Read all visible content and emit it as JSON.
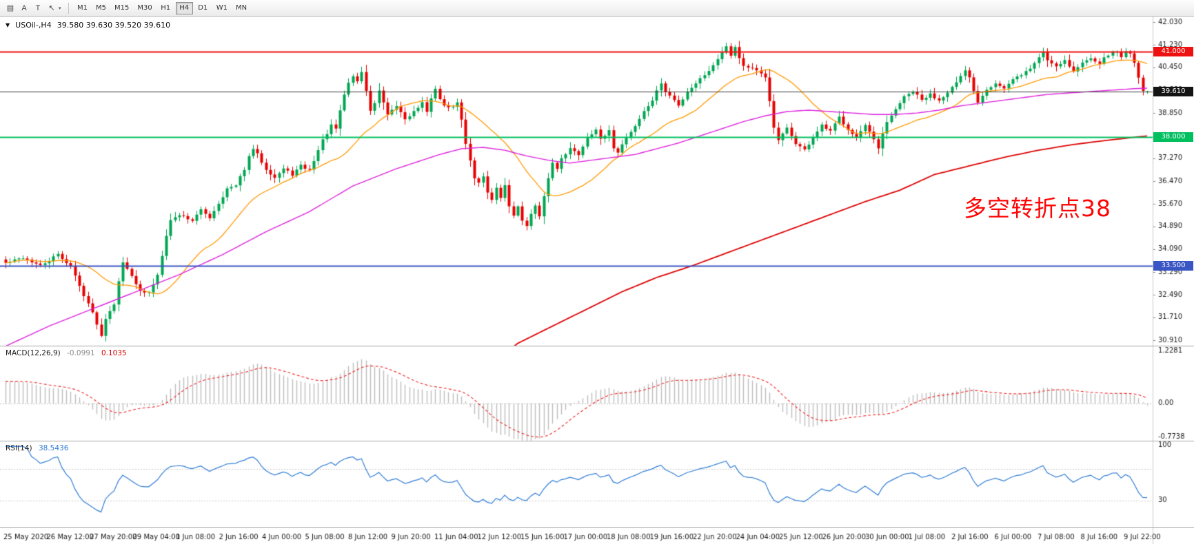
{
  "toolbar": {
    "icons": [
      {
        "name": "charts-grid-icon",
        "glyph": "▤"
      },
      {
        "name": "text-label-icon",
        "glyph": "A"
      },
      {
        "name": "template-icon",
        "glyph": "T"
      },
      {
        "name": "cursor-tool-icon",
        "glyph": "↖"
      },
      {
        "name": "dropdown-caret-icon",
        "glyph": "▾"
      }
    ],
    "timeframes": [
      "M1",
      "M5",
      "M15",
      "M30",
      "H1",
      "H4",
      "D1",
      "W1",
      "MN"
    ],
    "selected_timeframe": "H4"
  },
  "chart": {
    "symbol_title": "USOil-,H4",
    "ohlc": "39.580 39.630 39.520 39.610",
    "dropdown_glyph": "▼",
    "annotation": {
      "text": "多空转折点38",
      "color": "#fe0505"
    },
    "price_scale": {
      "max": 42.03,
      "min": 30.91,
      "ticks": [
        "42.030",
        "41.230",
        "40.450",
        "39.660",
        "38.850",
        "38.060",
        "37.270",
        "36.470",
        "35.670",
        "34.890",
        "34.090",
        "33.290",
        "32.490",
        "31.710",
        "30.910"
      ]
    },
    "hlines": [
      {
        "price": 41.0,
        "label": "41.000",
        "color": "#ee1111"
      },
      {
        "price": 38.0,
        "label": "38.000",
        "color": "#00bf5f"
      },
      {
        "price": 33.5,
        "label": "33.500",
        "color": "#3a55c4"
      }
    ],
    "current_price": {
      "value": 39.61,
      "label": "39.610",
      "color": "#141414"
    },
    "candles": {
      "count": 264,
      "up_color": "#00a651",
      "down_color": "#e80000",
      "close_keyframes": [
        [
          0,
          33.6
        ],
        [
          4,
          33.8
        ],
        [
          8,
          33.5
        ],
        [
          12,
          33.9
        ],
        [
          15,
          33.5
        ],
        [
          17,
          32.8
        ],
        [
          19,
          32.2
        ],
        [
          21,
          31.5
        ],
        [
          22,
          31.05
        ],
        [
          23,
          31.7
        ],
        [
          25,
          32.2
        ],
        [
          26,
          33.0
        ],
        [
          27,
          33.6
        ],
        [
          29,
          33.2
        ],
        [
          31,
          32.6
        ],
        [
          33,
          32.55
        ],
        [
          35,
          33.2
        ],
        [
          36,
          33.9
        ],
        [
          37,
          34.6
        ],
        [
          38,
          35.1
        ],
        [
          40,
          35.3
        ],
        [
          43,
          35.1
        ],
        [
          45,
          35.45
        ],
        [
          47,
          35.2
        ],
        [
          49,
          35.7
        ],
        [
          51,
          36.2
        ],
        [
          53,
          36.3
        ],
        [
          55,
          36.9
        ],
        [
          56,
          37.3
        ],
        [
          57,
          37.6
        ],
        [
          58,
          37.4
        ],
        [
          60,
          36.9
        ],
        [
          62,
          36.6
        ],
        [
          64,
          36.9
        ],
        [
          66,
          36.7
        ],
        [
          68,
          37.0
        ],
        [
          70,
          36.85
        ],
        [
          71,
          37.2
        ],
        [
          73,
          37.9
        ],
        [
          75,
          38.4
        ],
        [
          76,
          38.3
        ],
        [
          77,
          38.9
        ],
        [
          78,
          39.5
        ],
        [
          79,
          39.9
        ],
        [
          80,
          40.15
        ],
        [
          81,
          39.95
        ],
        [
          82,
          40.3
        ],
        [
          83,
          39.6
        ],
        [
          84,
          38.95
        ],
        [
          85,
          39.2
        ],
        [
          86,
          39.6
        ],
        [
          87,
          39.2
        ],
        [
          88,
          38.75
        ],
        [
          90,
          39.1
        ],
        [
          92,
          38.65
        ],
        [
          94,
          38.9
        ],
        [
          96,
          39.2
        ],
        [
          97,
          38.85
        ],
        [
          98,
          39.4
        ],
        [
          99,
          39.7
        ],
        [
          100,
          39.3
        ],
        [
          102,
          39.0
        ],
        [
          104,
          39.2
        ],
        [
          105,
          38.6
        ],
        [
          106,
          37.8
        ],
        [
          107,
          37.2
        ],
        [
          108,
          36.6
        ],
        [
          109,
          36.4
        ],
        [
          110,
          36.65
        ],
        [
          111,
          36.1
        ],
        [
          112,
          35.8
        ],
        [
          113,
          36.2
        ],
        [
          114,
          35.9
        ],
        [
          115,
          36.3
        ],
        [
          116,
          35.6
        ],
        [
          117,
          35.3
        ],
        [
          118,
          35.55
        ],
        [
          119,
          35.1
        ],
        [
          120,
          34.95
        ],
        [
          121,
          35.3
        ],
        [
          122,
          35.6
        ],
        [
          123,
          35.2
        ],
        [
          124,
          35.9
        ],
        [
          125,
          36.6
        ],
        [
          126,
          37.1
        ],
        [
          127,
          36.9
        ],
        [
          128,
          37.3
        ],
        [
          130,
          37.6
        ],
        [
          132,
          37.4
        ],
        [
          134,
          38.0
        ],
        [
          136,
          38.3
        ],
        [
          137,
          37.9
        ],
        [
          139,
          38.2
        ],
        [
          140,
          37.65
        ],
        [
          141,
          37.5
        ],
        [
          143,
          38.0
        ],
        [
          145,
          38.4
        ],
        [
          147,
          38.9
        ],
        [
          149,
          39.3
        ],
        [
          151,
          39.9
        ],
        [
          152,
          39.6
        ],
        [
          154,
          39.3
        ],
        [
          155,
          39.1
        ],
        [
          157,
          39.6
        ],
        [
          159,
          39.9
        ],
        [
          161,
          40.2
        ],
        [
          163,
          40.5
        ],
        [
          165,
          41.0
        ],
        [
          166,
          41.2
        ],
        [
          167,
          40.9
        ],
        [
          168,
          41.15
        ],
        [
          169,
          40.8
        ],
        [
          170,
          40.5
        ],
        [
          172,
          40.4
        ],
        [
          174,
          40.2
        ],
        [
          175,
          40.1
        ],
        [
          176,
          39.3
        ],
        [
          177,
          38.3
        ],
        [
          178,
          37.9
        ],
        [
          180,
          38.3
        ],
        [
          182,
          37.8
        ],
        [
          184,
          37.55
        ],
        [
          186,
          38.0
        ],
        [
          188,
          38.4
        ],
        [
          190,
          38.2
        ],
        [
          192,
          38.7
        ],
        [
          194,
          38.3
        ],
        [
          196,
          38.0
        ],
        [
          198,
          38.4
        ],
        [
          200,
          37.9
        ],
        [
          201,
          37.6
        ],
        [
          202,
          38.1
        ],
        [
          203,
          38.5
        ],
        [
          205,
          39.0
        ],
        [
          207,
          39.4
        ],
        [
          209,
          39.6
        ],
        [
          211,
          39.3
        ],
        [
          213,
          39.5
        ],
        [
          215,
          39.3
        ],
        [
          217,
          39.6
        ],
        [
          219,
          39.9
        ],
        [
          221,
          40.3
        ],
        [
          222,
          40.1
        ],
        [
          223,
          39.6
        ],
        [
          224,
          39.25
        ],
        [
          226,
          39.7
        ],
        [
          228,
          39.9
        ],
        [
          230,
          39.7
        ],
        [
          232,
          40.0
        ],
        [
          234,
          40.2
        ],
        [
          236,
          40.4
        ],
        [
          238,
          40.8
        ],
        [
          239,
          41.0
        ],
        [
          240,
          40.7
        ],
        [
          242,
          40.5
        ],
        [
          244,
          40.7
        ],
        [
          246,
          40.3
        ],
        [
          248,
          40.6
        ],
        [
          250,
          40.8
        ],
        [
          252,
          40.6
        ],
        [
          254,
          40.9
        ],
        [
          256,
          41.0
        ],
        [
          257,
          40.8
        ],
        [
          258,
          41.05
        ],
        [
          259,
          40.9
        ],
        [
          260,
          40.65
        ],
        [
          261,
          40.1
        ],
        [
          262,
          39.65
        ],
        [
          263,
          39.61
        ]
      ]
    },
    "moving_averages": {
      "fast": {
        "period": 20,
        "color": "#ff9900"
      },
      "mid": {
        "color": "#dd22dd",
        "keyframes": [
          [
            0,
            30.7
          ],
          [
            10,
            31.4
          ],
          [
            20,
            32.0
          ],
          [
            30,
            32.6
          ],
          [
            40,
            33.2
          ],
          [
            50,
            33.9
          ],
          [
            60,
            34.7
          ],
          [
            70,
            35.4
          ],
          [
            80,
            36.3
          ],
          [
            85,
            36.6
          ],
          [
            90,
            36.9
          ],
          [
            95,
            37.15
          ],
          [
            100,
            37.4
          ],
          [
            105,
            37.6
          ],
          [
            110,
            37.65
          ],
          [
            115,
            37.55
          ],
          [
            120,
            37.35
          ],
          [
            125,
            37.2
          ],
          [
            130,
            37.1
          ],
          [
            135,
            37.2
          ],
          [
            140,
            37.3
          ],
          [
            145,
            37.4
          ],
          [
            150,
            37.6
          ],
          [
            155,
            37.8
          ],
          [
            160,
            38.05
          ],
          [
            165,
            38.3
          ],
          [
            170,
            38.55
          ],
          [
            175,
            38.75
          ],
          [
            180,
            38.9
          ],
          [
            185,
            38.95
          ],
          [
            190,
            38.9
          ],
          [
            195,
            38.85
          ],
          [
            200,
            38.8
          ],
          [
            205,
            38.8
          ],
          [
            210,
            38.85
          ],
          [
            215,
            38.95
          ],
          [
            220,
            39.1
          ],
          [
            225,
            39.2
          ],
          [
            230,
            39.3
          ],
          [
            235,
            39.4
          ],
          [
            240,
            39.5
          ],
          [
            245,
            39.55
          ],
          [
            250,
            39.6
          ],
          [
            255,
            39.65
          ],
          [
            260,
            39.7
          ],
          [
            263,
            39.72
          ]
        ]
      },
      "slow": {
        "color": "#dd0000",
        "keyframes": [
          [
            114,
            30.3
          ],
          [
            118,
            30.8
          ],
          [
            126,
            31.4
          ],
          [
            134,
            32.0
          ],
          [
            142,
            32.6
          ],
          [
            150,
            33.1
          ],
          [
            158,
            33.5
          ],
          [
            166,
            33.95
          ],
          [
            174,
            34.4
          ],
          [
            182,
            34.85
          ],
          [
            190,
            35.3
          ],
          [
            198,
            35.75
          ],
          [
            206,
            36.15
          ],
          [
            214,
            36.7
          ],
          [
            222,
            37.0
          ],
          [
            230,
            37.3
          ],
          [
            238,
            37.55
          ],
          [
            246,
            37.75
          ],
          [
            254,
            37.9
          ],
          [
            263,
            38.05
          ]
        ]
      }
    }
  },
  "macd": {
    "label": "MACD(12,26,9)",
    "main_value": "-0.0991",
    "signal_value": "0.1035",
    "params": {
      "fast": 12,
      "slow": 26,
      "signal": 9
    },
    "scale": {
      "max": 1.2281,
      "min": -0.7738,
      "ticks": [
        "1.2281",
        "0.00",
        "-0.7738"
      ]
    },
    "histogram_color": "#bdbdbd",
    "signal_color": "#ee2222"
  },
  "rsi": {
    "label": "RSI(14)",
    "value": "38.5436",
    "period": 14,
    "line_color": "#2d7bd6",
    "scale": {
      "ticks": [
        {
          "v": 100,
          "label": "100"
        },
        {
          "v": 30,
          "label": "30"
        }
      ],
      "levels": [
        70,
        30
      ]
    }
  },
  "time_axis": {
    "labels": [
      "25 May 2020",
      "26 May 12:00",
      "27 May 20:00",
      "29 May 04:00",
      "1 Jun 08:00",
      "2 Jun 16:00",
      "4 Jun 00:00",
      "5 Jun 08:00",
      "8 Jun 12:00",
      "9 Jun 20:00",
      "11 Jun 04:00",
      "12 Jun 12:00",
      "15 Jun 16:00",
      "17 Jun 00:00",
      "18 Jun 08:00",
      "19 Jun 16:00",
      "22 Jun 20:00",
      "24 Jun 04:00",
      "25 Jun 12:00",
      "26 Jun 20:00",
      "30 Jun 00:00",
      "1 Jul 08:00",
      "2 Jul 16:00",
      "6 Jul 00:00",
      "7 Jul 08:00",
      "8 Jul 16:00",
      "9 Jul 22:00"
    ]
  }
}
